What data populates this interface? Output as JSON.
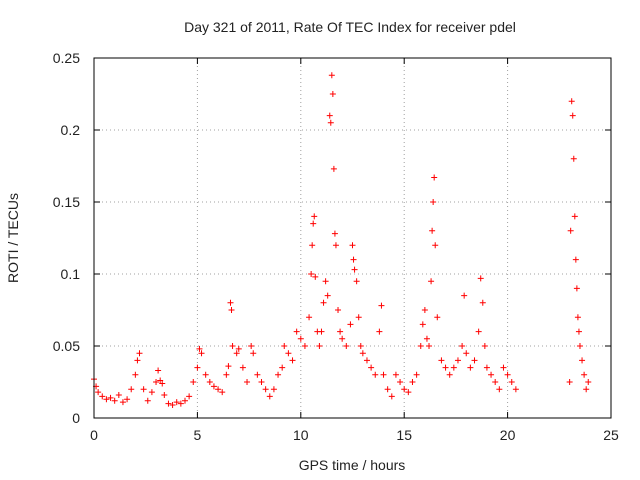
{
  "chart_data": {
    "type": "scatter",
    "title": "Day 321 of 2011, Rate Of TEC Index for receiver pdel",
    "xlabel": "GPS time / hours",
    "ylabel": "ROTI / TECUs",
    "xlim": [
      0,
      25
    ],
    "ylim": [
      0,
      0.25
    ],
    "xticks": [
      0,
      5,
      10,
      15,
      20,
      25
    ],
    "yticks": [
      0,
      0.05,
      0.1,
      0.15,
      0.2,
      0.25
    ],
    "xtick_labels": [
      "0",
      "5",
      "10",
      "15",
      "20",
      "25"
    ],
    "ytick_labels": [
      "0",
      "0.05",
      "0.1",
      "0.15",
      "0.2",
      "0.25"
    ],
    "grid": true,
    "marker": "plus",
    "color": "#ff0000",
    "series": [
      {
        "points": [
          [
            0.0,
            0.027
          ],
          [
            0.1,
            0.022
          ],
          [
            0.2,
            0.018
          ],
          [
            0.4,
            0.015
          ],
          [
            0.6,
            0.013
          ],
          [
            0.8,
            0.014
          ],
          [
            1.0,
            0.012
          ],
          [
            1.2,
            0.016
          ],
          [
            1.4,
            0.011
          ],
          [
            1.6,
            0.013
          ],
          [
            1.8,
            0.02
          ],
          [
            2.0,
            0.03
          ],
          [
            2.1,
            0.04
          ],
          [
            2.2,
            0.045
          ],
          [
            2.4,
            0.02
          ],
          [
            2.6,
            0.012
          ],
          [
            2.8,
            0.018
          ],
          [
            3.0,
            0.025
          ],
          [
            3.1,
            0.033
          ],
          [
            3.2,
            0.026
          ],
          [
            3.3,
            0.024
          ],
          [
            3.4,
            0.016
          ],
          [
            3.6,
            0.01
          ],
          [
            3.8,
            0.009
          ],
          [
            4.0,
            0.011
          ],
          [
            4.2,
            0.01
          ],
          [
            4.4,
            0.012
          ],
          [
            4.6,
            0.015
          ],
          [
            4.8,
            0.025
          ],
          [
            5.0,
            0.035
          ],
          [
            5.1,
            0.048
          ],
          [
            5.2,
            0.045
          ],
          [
            5.4,
            0.03
          ],
          [
            5.6,
            0.025
          ],
          [
            5.8,
            0.022
          ],
          [
            6.0,
            0.02
          ],
          [
            6.2,
            0.018
          ],
          [
            6.4,
            0.03
          ],
          [
            6.5,
            0.036
          ],
          [
            6.6,
            0.08
          ],
          [
            6.65,
            0.075
          ],
          [
            6.7,
            0.05
          ],
          [
            6.9,
            0.045
          ],
          [
            7.0,
            0.048
          ],
          [
            7.2,
            0.035
          ],
          [
            7.4,
            0.025
          ],
          [
            7.6,
            0.05
          ],
          [
            7.7,
            0.045
          ],
          [
            7.9,
            0.03
          ],
          [
            8.1,
            0.025
          ],
          [
            8.3,
            0.02
          ],
          [
            8.5,
            0.015
          ],
          [
            8.7,
            0.02
          ],
          [
            8.9,
            0.03
          ],
          [
            9.1,
            0.035
          ],
          [
            9.2,
            0.05
          ],
          [
            9.4,
            0.045
          ],
          [
            9.6,
            0.04
          ],
          [
            9.8,
            0.06
          ],
          [
            10.0,
            0.055
          ],
          [
            10.2,
            0.05
          ],
          [
            10.4,
            0.07
          ],
          [
            10.5,
            0.1
          ],
          [
            10.55,
            0.12
          ],
          [
            10.6,
            0.135
          ],
          [
            10.65,
            0.14
          ],
          [
            10.7,
            0.098
          ],
          [
            10.8,
            0.06
          ],
          [
            10.9,
            0.05
          ],
          [
            11.0,
            0.06
          ],
          [
            11.1,
            0.08
          ],
          [
            11.2,
            0.095
          ],
          [
            11.3,
            0.085
          ],
          [
            11.4,
            0.21
          ],
          [
            11.45,
            0.205
          ],
          [
            11.5,
            0.238
          ],
          [
            11.55,
            0.225
          ],
          [
            11.6,
            0.173
          ],
          [
            11.65,
            0.128
          ],
          [
            11.7,
            0.12
          ],
          [
            11.8,
            0.075
          ],
          [
            11.9,
            0.06
          ],
          [
            12.0,
            0.055
          ],
          [
            12.2,
            0.05
          ],
          [
            12.4,
            0.065
          ],
          [
            12.5,
            0.12
          ],
          [
            12.55,
            0.11
          ],
          [
            12.6,
            0.103
          ],
          [
            12.7,
            0.095
          ],
          [
            12.8,
            0.07
          ],
          [
            12.9,
            0.05
          ],
          [
            13.0,
            0.045
          ],
          [
            13.2,
            0.04
          ],
          [
            13.4,
            0.035
          ],
          [
            13.6,
            0.03
          ],
          [
            13.8,
            0.06
          ],
          [
            13.9,
            0.078
          ],
          [
            14.0,
            0.03
          ],
          [
            14.2,
            0.02
          ],
          [
            14.4,
            0.015
          ],
          [
            14.6,
            0.03
          ],
          [
            14.8,
            0.025
          ],
          [
            15.0,
            0.02
          ],
          [
            15.2,
            0.018
          ],
          [
            15.4,
            0.025
          ],
          [
            15.6,
            0.03
          ],
          [
            15.8,
            0.05
          ],
          [
            15.9,
            0.065
          ],
          [
            16.0,
            0.075
          ],
          [
            16.1,
            0.055
          ],
          [
            16.2,
            0.05
          ],
          [
            16.3,
            0.095
          ],
          [
            16.35,
            0.13
          ],
          [
            16.4,
            0.15
          ],
          [
            16.45,
            0.167
          ],
          [
            16.5,
            0.12
          ],
          [
            16.6,
            0.07
          ],
          [
            16.8,
            0.04
          ],
          [
            17.0,
            0.035
          ],
          [
            17.2,
            0.03
          ],
          [
            17.4,
            0.035
          ],
          [
            17.6,
            0.04
          ],
          [
            17.8,
            0.05
          ],
          [
            17.9,
            0.085
          ],
          [
            18.0,
            0.045
          ],
          [
            18.2,
            0.035
          ],
          [
            18.4,
            0.04
          ],
          [
            18.6,
            0.06
          ],
          [
            18.7,
            0.097
          ],
          [
            18.8,
            0.08
          ],
          [
            18.9,
            0.05
          ],
          [
            19.0,
            0.035
          ],
          [
            19.2,
            0.03
          ],
          [
            19.4,
            0.025
          ],
          [
            19.6,
            0.02
          ],
          [
            19.8,
            0.035
          ],
          [
            20.0,
            0.03
          ],
          [
            20.2,
            0.025
          ],
          [
            20.4,
            0.02
          ],
          [
            23.0,
            0.025
          ],
          [
            23.05,
            0.13
          ],
          [
            23.1,
            0.22
          ],
          [
            23.15,
            0.21
          ],
          [
            23.2,
            0.18
          ],
          [
            23.25,
            0.14
          ],
          [
            23.3,
            0.11
          ],
          [
            23.35,
            0.09
          ],
          [
            23.4,
            0.07
          ],
          [
            23.45,
            0.06
          ],
          [
            23.5,
            0.05
          ],
          [
            23.6,
            0.04
          ],
          [
            23.7,
            0.03
          ],
          [
            23.8,
            0.02
          ],
          [
            23.9,
            0.025
          ]
        ]
      }
    ]
  }
}
